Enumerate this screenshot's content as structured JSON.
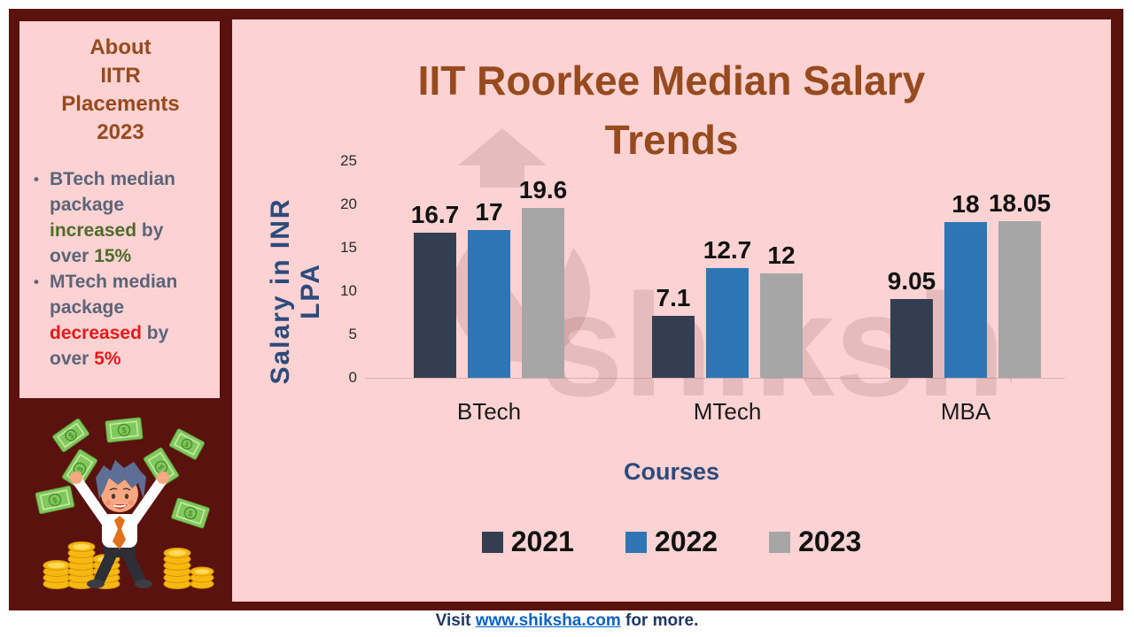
{
  "about_panel": {
    "title_lines": [
      "About",
      "IITR",
      "Placements",
      "2023"
    ],
    "bullets": [
      {
        "segments": [
          {
            "text": "BTech median package ",
            "color": "slate"
          },
          {
            "text": "increased",
            "color": "green"
          },
          {
            "text": " by over ",
            "color": "slate"
          },
          {
            "text": "15%",
            "color": "green"
          }
        ]
      },
      {
        "segments": [
          {
            "text": "MTech median package ",
            "color": "slate"
          },
          {
            "text": "decreased",
            "color": "red"
          },
          {
            "text": " by over ",
            "color": "slate"
          },
          {
            "text": "5%",
            "color": "red"
          }
        ]
      }
    ]
  },
  "chart_data": {
    "type": "bar",
    "title": "IIT Roorkee Median Salary Trends",
    "title_lines": [
      "IIT Roorkee Median Salary",
      "Trends"
    ],
    "xlabel": "Courses",
    "ylabel": "Salary in INR LPA",
    "categories": [
      "BTech",
      "MTech",
      "MBA"
    ],
    "series": [
      {
        "name": "2021",
        "color": "#333F50",
        "values": [
          16.7,
          7.1,
          9.05
        ]
      },
      {
        "name": "2022",
        "color": "#2E75B6",
        "values": [
          17,
          12.7,
          18
        ]
      },
      {
        "name": "2023",
        "color": "#A6A6A6",
        "values": [
          19.6,
          12,
          18.05
        ]
      }
    ],
    "ylim": [
      0,
      25
    ],
    "yticks": [
      0,
      5,
      10,
      15,
      20,
      25
    ],
    "legend_position": "bottom",
    "grid": false
  },
  "watermark": {
    "text": "shiksha"
  },
  "footer": {
    "prefix": "Visit ",
    "link": "www.shiksha.com",
    "suffix": " for more."
  },
  "colors": {
    "frame": "#5A120E",
    "panel": "#FCD2D2",
    "heading": "#964A1E",
    "axis_text": "#2C4B7C",
    "footer_text": "#1F3864",
    "link": "#0B63C5"
  }
}
